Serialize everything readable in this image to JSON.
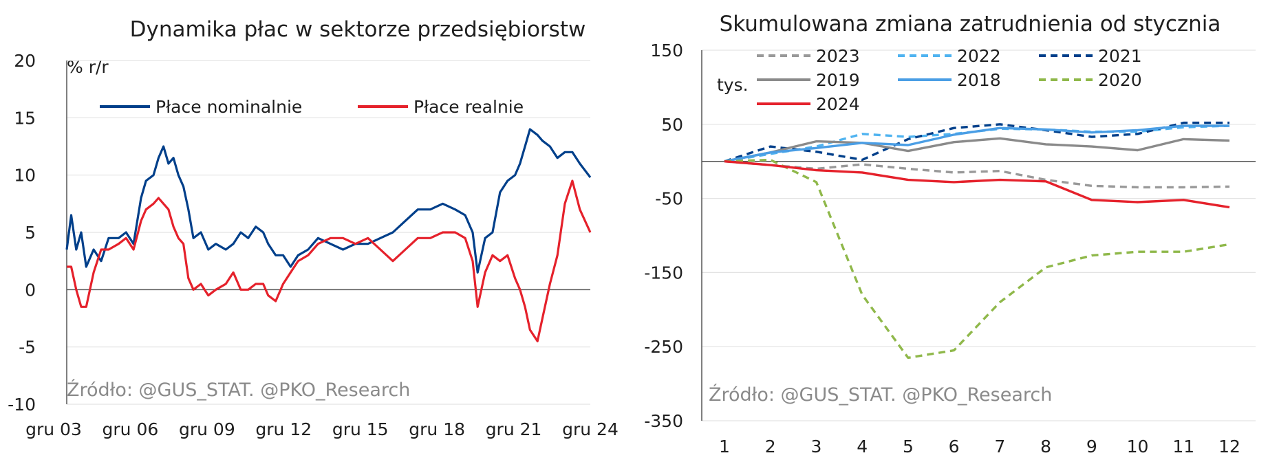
{
  "chart_data": [
    {
      "type": "line",
      "title": "Dynamika płac w sektorze przedsiębiorstw",
      "unit_label": "% r/r",
      "source": "Źródło: @GUS_STAT. @PKO_Research",
      "ylim": [
        -10,
        20
      ],
      "yticks": [
        "20",
        "15",
        "10",
        "5",
        "0",
        "-5",
        "-10"
      ],
      "x_tick_labels": [
        "gru 03",
        "gru 06",
        "gru 09",
        "gru 12",
        "gru 15",
        "gru 18",
        "gru 21",
        "gru 24"
      ],
      "x_range": [
        2003.92,
        2024.92
      ],
      "legend_position": "top",
      "grid": true,
      "series": [
        {
          "name": "Płace nominalnie",
          "color": "#003f8a",
          "x": [
            2003.92,
            2004.1,
            2004.3,
            2004.5,
            2004.7,
            2005.0,
            2005.3,
            2005.6,
            2006.0,
            2006.3,
            2006.6,
            2006.9,
            2007.1,
            2007.4,
            2007.6,
            2007.8,
            2008.0,
            2008.2,
            2008.4,
            2008.6,
            2008.8,
            2009.0,
            2009.3,
            2009.6,
            2009.9,
            2010.3,
            2010.6,
            2010.9,
            2011.2,
            2011.5,
            2011.8,
            2012.0,
            2012.3,
            2012.6,
            2012.9,
            2013.2,
            2013.6,
            2014.0,
            2014.5,
            2015.0,
            2015.5,
            2016.0,
            2016.5,
            2017.0,
            2017.5,
            2018.0,
            2018.5,
            2019.0,
            2019.5,
            2019.9,
            2020.2,
            2020.4,
            2020.7,
            2021.0,
            2021.3,
            2021.6,
            2021.9,
            2022.1,
            2022.3,
            2022.5,
            2022.8,
            2023.0,
            2023.3,
            2023.6,
            2023.9,
            2024.2,
            2024.5,
            2024.92
          ],
          "y": [
            3.5,
            6.5,
            3.5,
            5.0,
            2.0,
            3.5,
            2.5,
            4.5,
            4.5,
            5.0,
            4.0,
            8.0,
            9.5,
            10.0,
            11.5,
            12.5,
            11.0,
            11.5,
            10.0,
            9.0,
            7.0,
            4.5,
            5.0,
            3.5,
            4.0,
            3.5,
            4.0,
            5.0,
            4.5,
            5.5,
            5.0,
            4.0,
            3.0,
            3.0,
            2.0,
            3.0,
            3.5,
            4.5,
            4.0,
            3.5,
            4.0,
            4.0,
            4.5,
            5.0,
            6.0,
            7.0,
            7.0,
            7.5,
            7.0,
            6.5,
            5.0,
            1.5,
            4.5,
            5.0,
            8.5,
            9.5,
            10.0,
            11.0,
            12.5,
            14.0,
            13.5,
            13.0,
            12.5,
            11.5,
            12.0,
            12.0,
            11.0,
            9.8
          ]
        },
        {
          "name": "Płace realnie",
          "color": "#e5212b",
          "x": [
            2003.92,
            2004.1,
            2004.3,
            2004.5,
            2004.7,
            2005.0,
            2005.3,
            2005.6,
            2006.0,
            2006.3,
            2006.6,
            2006.9,
            2007.1,
            2007.4,
            2007.6,
            2007.8,
            2008.0,
            2008.2,
            2008.4,
            2008.6,
            2008.8,
            2009.0,
            2009.3,
            2009.6,
            2009.9,
            2010.3,
            2010.6,
            2010.9,
            2011.2,
            2011.5,
            2011.8,
            2012.0,
            2012.3,
            2012.6,
            2012.9,
            2013.2,
            2013.6,
            2014.0,
            2014.5,
            2015.0,
            2015.5,
            2016.0,
            2016.5,
            2017.0,
            2017.5,
            2018.0,
            2018.5,
            2019.0,
            2019.5,
            2019.9,
            2020.2,
            2020.4,
            2020.7,
            2021.0,
            2021.3,
            2021.6,
            2021.9,
            2022.1,
            2022.3,
            2022.5,
            2022.8,
            2023.0,
            2023.3,
            2023.6,
            2023.9,
            2024.2,
            2024.5,
            2024.92
          ],
          "y": [
            2.0,
            2.0,
            0.0,
            -1.5,
            -1.5,
            1.5,
            3.5,
            3.5,
            4.0,
            4.5,
            3.5,
            6.0,
            7.0,
            7.5,
            8.0,
            7.5,
            7.0,
            5.5,
            4.5,
            4.0,
            1.0,
            0.0,
            0.5,
            -0.5,
            0.0,
            0.5,
            1.5,
            0.0,
            0.0,
            0.5,
            0.5,
            -0.5,
            -1.0,
            0.5,
            1.5,
            2.5,
            3.0,
            4.0,
            4.5,
            4.5,
            4.0,
            4.5,
            3.5,
            2.5,
            3.5,
            4.5,
            4.5,
            5.0,
            5.0,
            4.5,
            2.5,
            -1.5,
            1.5,
            3.0,
            2.5,
            3.0,
            1.0,
            0.0,
            -1.5,
            -3.5,
            -4.5,
            -2.5,
            0.5,
            3.0,
            7.5,
            9.5,
            7.0,
            5.0
          ]
        }
      ]
    },
    {
      "type": "line",
      "title": "Skumulowana zmiana zatrudnienia od stycznia",
      "unit_label": "tys.",
      "source": "Źródło: @GUS_STAT. @PKO_Research",
      "ylim": [
        -350,
        150
      ],
      "yticks": [
        "150",
        "50",
        "-50",
        "-150",
        "-250",
        "-350"
      ],
      "x_tick_labels": [
        "1",
        "2",
        "3",
        "4",
        "5",
        "6",
        "7",
        "8",
        "9",
        "10",
        "11",
        "12"
      ],
      "legend_position": "top",
      "grid": true,
      "series": [
        {
          "name": "2023",
          "color": "#999999",
          "dash": true,
          "x": [
            1,
            2,
            3,
            4,
            5,
            6,
            7,
            8,
            9,
            10,
            11,
            12
          ],
          "y": [
            0,
            -5,
            -10,
            -4,
            -10,
            -15,
            -13,
            -25,
            -33,
            -35,
            -35,
            -34
          ]
        },
        {
          "name": "2022",
          "color": "#4fb3f0",
          "dash": true,
          "x": [
            1,
            2,
            3,
            4,
            5,
            6,
            7,
            8,
            9,
            10,
            11,
            12
          ],
          "y": [
            0,
            10,
            20,
            37,
            33,
            37,
            44,
            43,
            40,
            40,
            46,
            48
          ]
        },
        {
          "name": "2021",
          "color": "#003f8a",
          "dash": true,
          "x": [
            1,
            2,
            3,
            4,
            5,
            6,
            7,
            8,
            9,
            10,
            11,
            12
          ],
          "y": [
            0,
            20,
            13,
            2,
            30,
            45,
            50,
            42,
            33,
            37,
            52,
            52
          ]
        },
        {
          "name": "2019",
          "color": "#8a8a8a",
          "dash": false,
          "x": [
            1,
            2,
            3,
            4,
            5,
            6,
            7,
            8,
            9,
            10,
            11,
            12
          ],
          "y": [
            0,
            12,
            27,
            25,
            14,
            26,
            31,
            23,
            20,
            15,
            30,
            28
          ]
        },
        {
          "name": "2018",
          "color": "#4a9ee5",
          "dash": false,
          "x": [
            1,
            2,
            3,
            4,
            5,
            6,
            7,
            8,
            9,
            10,
            11,
            12
          ],
          "y": [
            0,
            12,
            18,
            25,
            22,
            36,
            45,
            43,
            39,
            42,
            48,
            48
          ]
        },
        {
          "name": "2020",
          "color": "#8fb84a",
          "dash": true,
          "x": [
            1,
            2,
            3,
            4,
            5,
            6,
            7,
            8,
            9,
            10,
            11,
            12
          ],
          "y": [
            0,
            2,
            -28,
            -180,
            -265,
            -255,
            -190,
            -143,
            -127,
            -122,
            -122,
            -112
          ]
        },
        {
          "name": "2024",
          "color": "#e5212b",
          "dash": false,
          "x": [
            1,
            2,
            3,
            4,
            5,
            6,
            7,
            8,
            9,
            10,
            11,
            12
          ],
          "y": [
            0,
            -5,
            -12,
            -15,
            -25,
            -28,
            -25,
            -27,
            -52,
            -55,
            -52,
            -62
          ]
        }
      ]
    }
  ]
}
